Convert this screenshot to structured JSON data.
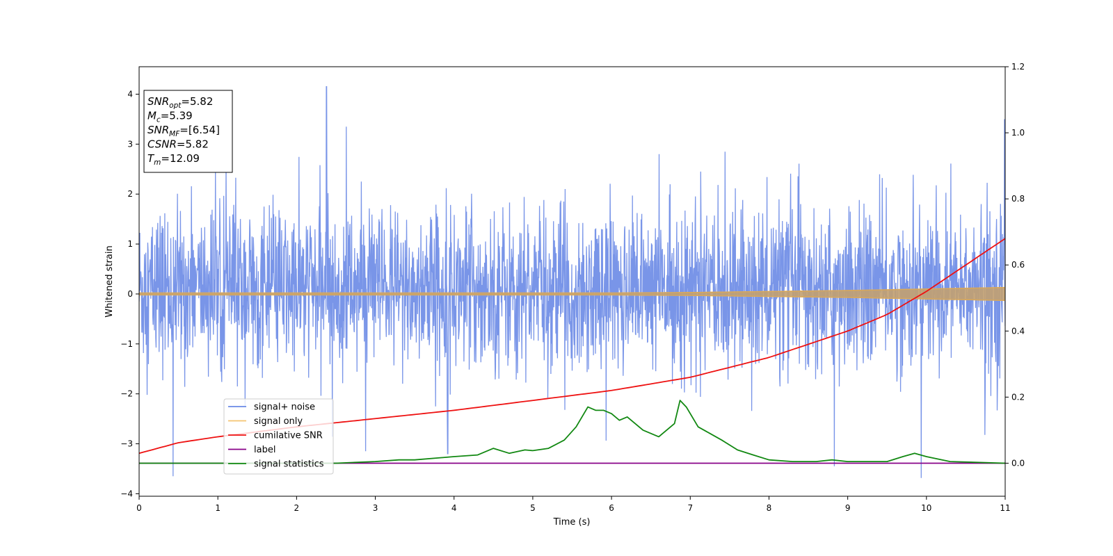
{
  "chart_data": {
    "type": "line",
    "xlabel": "Time (s)",
    "ylabel": "Whitened strain",
    "xlim": [
      0,
      11
    ],
    "ylim_left": [
      -4.05,
      4.55
    ],
    "ylim_right": [
      -0.1,
      1.2
    ],
    "x_ticks": [
      0,
      1,
      2,
      3,
      4,
      5,
      6,
      7,
      8,
      9,
      10,
      11
    ],
    "y_ticks_left": [
      -4,
      -3,
      -2,
      -1,
      0,
      1,
      2,
      3,
      4
    ],
    "y_ticks_right": [
      0.0,
      0.2,
      0.4,
      0.6,
      0.8,
      1.0,
      1.2
    ],
    "grid": false,
    "legend_position": "lower-left",
    "info_box": {
      "lines": [
        {
          "base": "SNR",
          "sub": "opt",
          "value": "=5.82"
        },
        {
          "base": "M",
          "sub": "c",
          "value": "=5.39"
        },
        {
          "base": "SNR",
          "sub": "MF",
          "value": "=[6.54]"
        },
        {
          "base": "CSNR",
          "sub": "",
          "value": "=5.82"
        },
        {
          "base": "T",
          "sub": "m",
          "value": "=12.09"
        }
      ]
    },
    "series": [
      {
        "name": "signal+ noise",
        "axis": "left",
        "color": "#6a8ae6",
        "kind": "noise",
        "x_range": [
          0,
          11
        ],
        "typical_range": [
          -2.0,
          2.2
        ],
        "notable_peaks": [
          {
            "x": 2.38,
            "y": 4.15
          },
          {
            "x": 2.63,
            "y": 3.35
          },
          {
            "x": 10.99,
            "y": 3.5
          },
          {
            "x": 0.43,
            "y": -3.65
          },
          {
            "x": 8.83,
            "y": -3.45
          },
          {
            "x": 3.92,
            "y": -3.2
          }
        ]
      },
      {
        "name": "signal only",
        "axis": "left",
        "color": "#f5b942",
        "kind": "chirp",
        "x": [
          0,
          2,
          4,
          6,
          7,
          8,
          9,
          10,
          11
        ],
        "amplitude": [
          0.02,
          0.02,
          0.02,
          0.02,
          0.03,
          0.05,
          0.07,
          0.1,
          0.13
        ]
      },
      {
        "name": "cumilative SNR",
        "axis": "right",
        "color": "#ee1111",
        "x": [
          0,
          0.5,
          1,
          2,
          3,
          4,
          5,
          6,
          7,
          8,
          9,
          9.5,
          10,
          10.5,
          11
        ],
        "y": [
          0.03,
          0.062,
          0.08,
          0.11,
          0.135,
          0.16,
          0.19,
          0.22,
          0.26,
          0.32,
          0.4,
          0.45,
          0.52,
          0.6,
          0.68
        ]
      },
      {
        "name": "label",
        "axis": "right",
        "color": "#880088",
        "x": [
          0,
          11
        ],
        "y": [
          0,
          0
        ]
      },
      {
        "name": "signal statistics",
        "axis": "right",
        "color": "#118811",
        "x": [
          0,
          2.5,
          3,
          3.3,
          3.5,
          4,
          4.3,
          4.5,
          4.7,
          4.9,
          5,
          5.2,
          5.4,
          5.55,
          5.7,
          5.8,
          5.9,
          6.0,
          6.1,
          6.2,
          6.4,
          6.6,
          6.8,
          6.87,
          6.95,
          7.1,
          7.25,
          7.4,
          7.6,
          7.8,
          8,
          8.3,
          8.6,
          8.8,
          9.0,
          9.5,
          9.7,
          9.85,
          10,
          10.3,
          11
        ],
        "y": [
          0,
          0.0,
          0.005,
          0.01,
          0.01,
          0.02,
          0.025,
          0.045,
          0.03,
          0.04,
          0.038,
          0.045,
          0.07,
          0.11,
          0.17,
          0.16,
          0.16,
          0.15,
          0.13,
          0.14,
          0.1,
          0.08,
          0.12,
          0.19,
          0.17,
          0.11,
          0.09,
          0.07,
          0.04,
          0.025,
          0.01,
          0.005,
          0.005,
          0.01,
          0.005,
          0.005,
          0.02,
          0.03,
          0.02,
          0.005,
          0.0
        ]
      }
    ]
  }
}
